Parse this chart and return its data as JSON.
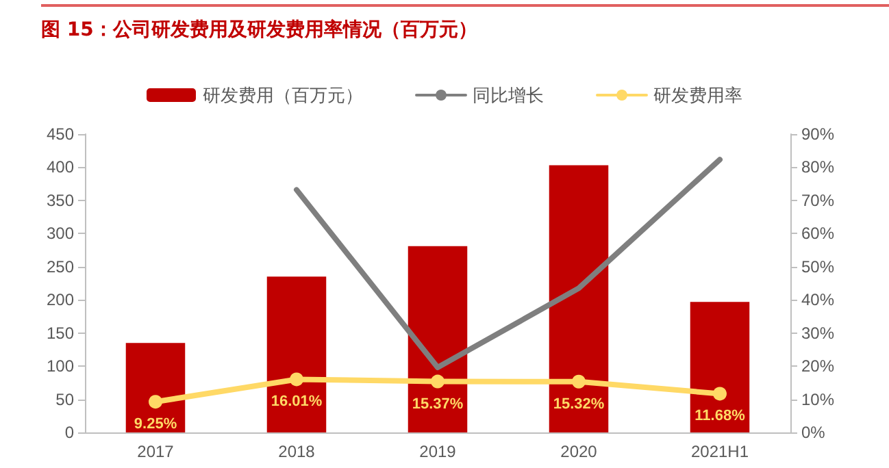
{
  "chart_data": {
    "type": "bar",
    "title": "图 15：公司研发费用及研发费用率情况（百万元）",
    "categories": [
      "2017",
      "2018",
      "2019",
      "2020",
      "2021H1"
    ],
    "series": [
      {
        "name": "研发费用（百万元）",
        "color": "#c00000",
        "values": [
          135,
          235,
          281,
          403,
          197
        ]
      },
      {
        "name": "同比增长",
        "type": "line",
        "axis": "y2",
        "color": "#7f7f7f",
        "marker": "none",
        "values": [
          null,
          73.2,
          19.6,
          43.5,
          82.3
        ]
      },
      {
        "name": "研发费用率",
        "type": "line",
        "axis": "y2",
        "color": "#ffd966",
        "marker": "circle",
        "values": [
          9.25,
          16.01,
          15.37,
          15.32,
          11.68
        ],
        "value_labels": [
          "9.25%",
          "16.01%",
          "15.37%",
          "15.32%",
          "11.68%"
        ]
      }
    ],
    "ylim": [
      0,
      450
    ],
    "yticks": [
      0,
      50,
      100,
      150,
      200,
      250,
      300,
      350,
      400,
      450
    ],
    "y2lim": [
      0,
      90
    ],
    "y2ticks": [
      {
        "value": 0,
        "label": "0%"
      },
      {
        "value": 10,
        "label": "10%"
      },
      {
        "value": 20,
        "label": "20%"
      },
      {
        "value": 30,
        "label": "30%"
      },
      {
        "value": 40,
        "label": "40%"
      },
      {
        "value": 50,
        "label": "50%"
      },
      {
        "value": 60,
        "label": "60%"
      },
      {
        "value": 70,
        "label": "70%"
      },
      {
        "value": 80,
        "label": "80%"
      },
      {
        "value": 90,
        "label": "90%"
      }
    ],
    "grid": false,
    "legend": "top"
  }
}
